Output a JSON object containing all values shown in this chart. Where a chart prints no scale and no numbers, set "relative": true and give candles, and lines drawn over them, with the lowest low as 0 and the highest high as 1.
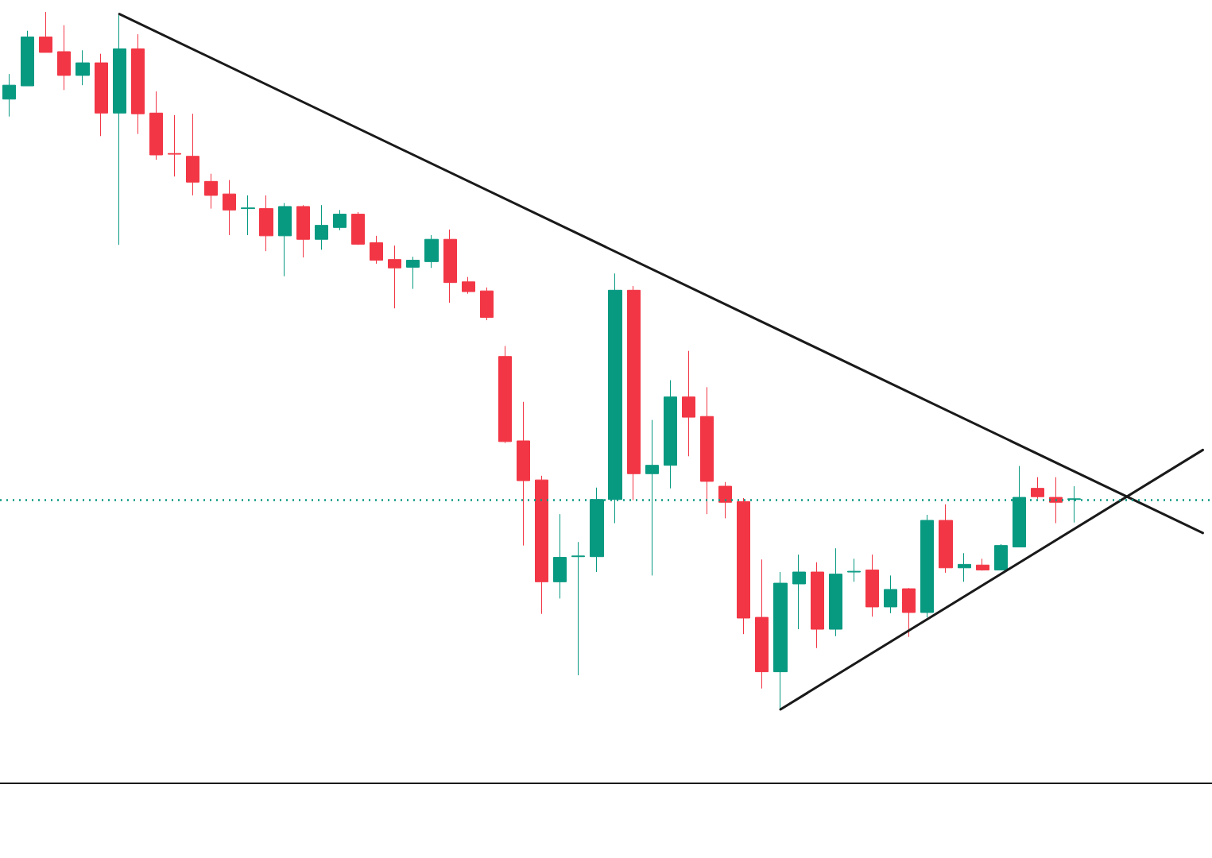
{
  "chart_data": {
    "type": "candlestick",
    "relative": true,
    "grid": false,
    "categories": [
      null,
      null,
      null,
      null,
      null,
      null,
      null,
      null,
      null,
      null,
      null,
      null,
      null,
      null,
      null,
      null,
      null,
      null,
      null,
      null,
      null,
      null,
      null,
      null,
      null,
      null,
      null,
      null,
      null,
      null,
      null,
      null,
      null,
      null,
      null,
      null,
      null,
      null,
      null,
      null,
      null,
      null,
      null,
      null,
      null,
      null,
      null,
      null,
      null,
      null,
      null,
      null,
      null,
      null,
      null,
      null,
      null,
      null,
      null,
      null,
      null,
      null,
      null,
      null,
      null,
      null
    ],
    "series": [
      {
        "ohlc": [
          [
            0.875,
            0.911,
            0.85,
            0.895
          ],
          [
            0.894,
            0.973,
            0.894,
            0.964
          ],
          [
            0.964,
            1.0,
            0.942,
            0.942
          ],
          [
            0.943,
            0.981,
            0.888,
            0.909
          ],
          [
            0.909,
            0.945,
            0.895,
            0.927
          ],
          [
            0.927,
            0.94,
            0.822,
            0.855
          ],
          [
            0.855,
            0.997,
            0.666,
            0.947
          ],
          [
            0.947,
            0.968,
            0.825,
            0.854
          ],
          [
            0.855,
            0.886,
            0.788,
            0.795
          ],
          [
            0.797,
            0.852,
            0.764,
            0.796
          ],
          [
            0.793,
            0.854,
            0.737,
            0.756
          ],
          [
            0.757,
            0.768,
            0.718,
            0.737
          ],
          [
            0.739,
            0.759,
            0.68,
            0.716
          ],
          [
            0.718,
            0.737,
            0.68,
            0.719
          ],
          [
            0.718,
            0.737,
            0.657,
            0.679
          ],
          [
            0.679,
            0.726,
            0.621,
            0.721
          ],
          [
            0.721,
            0.723,
            0.648,
            0.674
          ],
          [
            0.674,
            0.723,
            0.659,
            0.694
          ],
          [
            0.691,
            0.716,
            0.687,
            0.71
          ],
          [
            0.71,
            0.713,
            0.666,
            0.667
          ],
          [
            0.669,
            0.679,
            0.639,
            0.644
          ],
          [
            0.645,
            0.665,
            0.575,
            0.633
          ],
          [
            0.634,
            0.649,
            0.603,
            0.644
          ],
          [
            0.642,
            0.68,
            0.633,
            0.674
          ],
          [
            0.674,
            0.688,
            0.583,
            0.612
          ],
          [
            0.613,
            0.62,
            0.596,
            0.599
          ],
          [
            0.6,
            0.605,
            0.558,
            0.562
          ],
          [
            0.506,
            0.521,
            0.382,
            0.384
          ],
          [
            0.385,
            0.441,
            0.235,
            0.328
          ],
          [
            0.329,
            0.335,
            0.137,
            0.183
          ],
          [
            0.183,
            0.28,
            0.159,
            0.218
          ],
          [
            0.219,
            0.24,
            0.049,
            0.22
          ],
          [
            0.219,
            0.318,
            0.197,
            0.301
          ],
          [
            0.301,
            0.625,
            0.267,
            0.601
          ],
          [
            0.601,
            0.607,
            0.3,
            0.338
          ],
          [
            0.338,
            0.415,
            0.192,
            0.35
          ],
          [
            0.35,
            0.472,
            0.317,
            0.448
          ],
          [
            0.448,
            0.514,
            0.363,
            0.419
          ],
          [
            0.42,
            0.462,
            0.28,
            0.327
          ],
          [
            0.32,
            0.326,
            0.274,
            0.297
          ],
          [
            0.298,
            0.303,
            0.108,
            0.131
          ],
          [
            0.132,
            0.215,
            0.03,
            0.054
          ],
          [
            0.054,
            0.197,
            0.0,
            0.181
          ],
          [
            0.18,
            0.222,
            0.115,
            0.197
          ],
          [
            0.197,
            0.211,
            0.088,
            0.115
          ],
          [
            0.115,
            0.231,
            0.105,
            0.194
          ],
          [
            0.197,
            0.216,
            0.183,
            0.198
          ],
          [
            0.2,
            0.222,
            0.133,
            0.147
          ],
          [
            0.147,
            0.192,
            0.138,
            0.172
          ],
          [
            0.173,
            0.174,
            0.104,
            0.139
          ],
          [
            0.139,
            0.279,
            0.132,
            0.271
          ],
          [
            0.271,
            0.294,
            0.196,
            0.203
          ],
          [
            0.203,
            0.224,
            0.183,
            0.208
          ],
          [
            0.207,
            0.216,
            0.199,
            0.2
          ],
          [
            0.2,
            0.237,
            0.2,
            0.235
          ],
          [
            0.233,
            0.349,
            0.233,
            0.304
          ],
          [
            0.317,
            0.333,
            0.302,
            0.305
          ],
          [
            0.304,
            0.333,
            0.267,
            0.297
          ],
          [
            0.301,
            0.32,
            0.268,
            0.302
          ],
          null,
          null,
          null,
          null,
          null,
          null,
          null
        ],
        "colors": [
          "#089981",
          "#089981",
          "#f23645",
          "#f23645",
          "#089981",
          "#f23645",
          "#089981",
          "#f23645",
          "#f23645",
          "#f23645",
          "#f23645",
          "#f23645",
          "#f23645",
          "#089981",
          "#f23645",
          "#089981",
          "#f23645",
          "#089981",
          "#089981",
          "#f23645",
          "#f23645",
          "#f23645",
          "#089981",
          "#089981",
          "#f23645",
          "#f23645",
          "#f23645",
          "#f23645",
          "#f23645",
          "#f23645",
          "#089981",
          "#089981",
          "#089981",
          "#089981",
          "#f23645",
          "#089981",
          "#089981",
          "#f23645",
          "#f23645",
          "#f23645",
          "#f23645",
          "#f23645",
          "#089981",
          "#089981",
          "#f23645",
          "#089981",
          "#089981",
          "#f23645",
          "#089981",
          "#f23645",
          "#089981",
          "#f23645",
          "#089981",
          "#f23645",
          "#089981",
          "#089981",
          "#f23645",
          "#f23645",
          "#089981",
          null,
          null,
          null,
          null,
          null,
          null,
          null
        ]
      },
      {
        "type": "line",
        "color": "#1a1a1a",
        "marker": "none",
        "values": [
          null,
          null,
          null,
          null,
          null,
          null,
          0.997,
          null,
          null,
          null,
          null,
          null,
          null,
          null,
          null,
          null,
          null,
          null,
          null,
          null,
          null,
          null,
          null,
          null,
          null,
          null,
          null,
          null,
          null,
          null,
          null,
          null,
          null,
          null,
          null,
          null,
          null,
          null,
          null,
          null,
          null,
          null,
          null,
          null,
          null,
          null,
          null,
          null,
          null,
          null,
          null,
          null,
          null,
          null,
          null,
          null,
          null,
          null,
          null,
          null,
          null,
          null,
          null,
          null,
          null,
          0.253
        ]
      },
      {
        "type": "line",
        "color": "#1a1a1a",
        "marker": "none",
        "values": [
          null,
          null,
          null,
          null,
          null,
          null,
          null,
          null,
          null,
          null,
          null,
          null,
          null,
          null,
          null,
          null,
          null,
          null,
          null,
          null,
          null,
          null,
          null,
          null,
          null,
          null,
          null,
          null,
          null,
          null,
          null,
          null,
          null,
          null,
          null,
          null,
          null,
          null,
          null,
          null,
          null,
          null,
          0.0,
          null,
          null,
          null,
          null,
          null,
          null,
          null,
          null,
          null,
          null,
          null,
          null,
          null,
          null,
          null,
          null,
          null,
          null,
          null,
          null,
          null,
          null,
          0.372
        ]
      }
    ],
    "ref_lines": [
      {
        "axis": "y",
        "value": 0.302,
        "color": "#089981",
        "line_style": "dotted"
      }
    ]
  }
}
